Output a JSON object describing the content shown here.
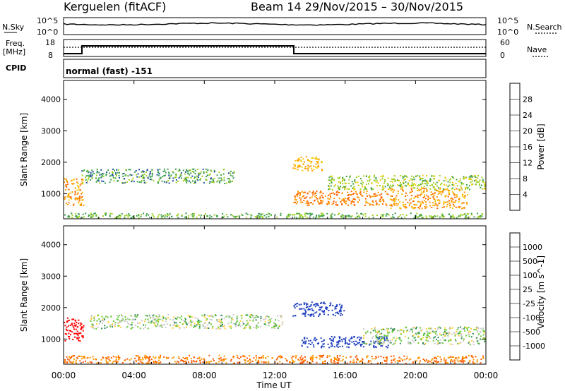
{
  "header": {
    "station": "Kerguelen (fitACF)",
    "beam_and_dates": "Beam 14  29/Nov/2015 – 30/Nov/2015"
  },
  "noise_panel": {
    "left_label": "N.Sky",
    "right_label": "N.Search",
    "left_ticks": [
      "10^5",
      "10^0"
    ],
    "right_ticks": [
      "10^5",
      "10^0"
    ]
  },
  "freq_panel": {
    "left_label_line1": "Freq.",
    "left_label_line2": "[MHz]",
    "right_label": "Nave",
    "left_ticks": [
      "18",
      "8"
    ],
    "right_ticks": [
      "60",
      "0"
    ]
  },
  "cpid": {
    "label": "CPID",
    "mode": "normal (fast) -151"
  },
  "chart_data": [
    {
      "type": "heatmap",
      "parameter": "power",
      "ylabel": "Slant Range [km]",
      "yticks": [
        1000,
        2000,
        3000,
        4000
      ],
      "ylim": [
        200,
        4600
      ],
      "xlim_hours": [
        0,
        24
      ],
      "colorbar": {
        "label": "Power [dB]",
        "ticks": [
          "28",
          "24",
          "20",
          "16",
          "12",
          "8",
          "4"
        ],
        "colors": [
          "#f00000",
          "#ff6400",
          "#ff9a00",
          "#f5c800",
          "#9ed020",
          "#3ca050",
          "#2050a0",
          "#0000ff"
        ]
      },
      "echo_regions": [
        {
          "start_hr": 0.0,
          "end_hr": 1.2,
          "range_km": [
            600,
            1500
          ],
          "value": 20
        },
        {
          "start_hr": 1.0,
          "end_hr": 9.8,
          "range_km": [
            1300,
            1800
          ],
          "value": 8
        },
        {
          "start_hr": 13.0,
          "end_hr": 14.8,
          "range_km": [
            1700,
            2200
          ],
          "value": 18
        },
        {
          "start_hr": 13.0,
          "end_hr": 18.5,
          "range_km": [
            600,
            1100
          ],
          "value": 22
        },
        {
          "start_hr": 18.5,
          "end_hr": 23.0,
          "range_km": [
            500,
            1200
          ],
          "value": 20
        },
        {
          "start_hr": 15.0,
          "end_hr": 24.0,
          "range_km": [
            1100,
            1600
          ],
          "value": 12
        },
        {
          "start_hr": 0.0,
          "end_hr": 24.0,
          "range_km": [
            200,
            400
          ],
          "value": 10
        }
      ]
    },
    {
      "type": "heatmap",
      "parameter": "velocity",
      "ylabel": "Slant Range [km]",
      "yticks": [
        1000,
        2000,
        3000,
        4000
      ],
      "ylim": [
        200,
        4600
      ],
      "xlim_hours": [
        0,
        24
      ],
      "xlabel": "Time UT",
      "xticks": [
        "00:00",
        "04:00",
        "08:00",
        "12:00",
        "16:00",
        "20:00",
        "00:00"
      ],
      "colorbar": {
        "label": "Velocity [m s^-1]",
        "ticks": [
          "1000",
          "500",
          "100",
          "25",
          "-25",
          "-100",
          "-500",
          "-1000"
        ],
        "colors": [
          "#2040c0",
          "#2060a0",
          "#2e8b57",
          "#66cc33",
          "#c8c8c8",
          "#ffcc33",
          "#ff9900",
          "#ff5500",
          "#ff0000"
        ]
      },
      "echo_regions": [
        {
          "start_hr": 0.0,
          "end_hr": 1.2,
          "range_km": [
            900,
            1700
          ],
          "value": -300
        },
        {
          "start_hr": 1.5,
          "end_hr": 12.5,
          "range_km": [
            1300,
            1800
          ],
          "value": 0
        },
        {
          "start_hr": 13.5,
          "end_hr": 18.5,
          "range_km": [
            700,
            1100
          ],
          "value": 200
        },
        {
          "start_hr": 17.0,
          "end_hr": 24.0,
          "range_km": [
            800,
            1400
          ],
          "value": 0
        },
        {
          "start_hr": 13.0,
          "end_hr": 16.0,
          "range_km": [
            1700,
            2200
          ],
          "value": 150
        },
        {
          "start_hr": 0.0,
          "end_hr": 24.0,
          "range_km": [
            200,
            500
          ],
          "value": -50
        }
      ]
    }
  ]
}
